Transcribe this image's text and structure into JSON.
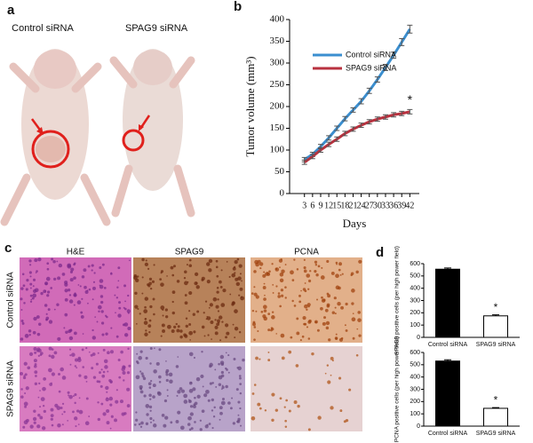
{
  "panel_labels": [
    "a",
    "b",
    "c",
    "d"
  ],
  "photo_panel": {
    "labels": [
      "Control siRNA",
      "SPAG9 siRNA"
    ]
  },
  "histology": {
    "columns": [
      "H&E",
      "SPAG9",
      "PCNA"
    ],
    "rows": [
      "Control siRNA",
      "SPAG9 siRNA"
    ]
  },
  "chart_data": [
    {
      "type": "line",
      "x_label": "Days",
      "y_label": "Tumor volume (mm³)",
      "x": [
        3,
        6,
        9,
        12,
        15,
        18,
        21,
        24,
        27,
        30,
        33,
        36,
        39,
        42
      ],
      "xlim": [
        -2.5,
        45.5
      ],
      "xticks": [
        3,
        6,
        9,
        12,
        15,
        18,
        21,
        24,
        27,
        30,
        33,
        36,
        39,
        42
      ],
      "ylim": [
        0,
        400
      ],
      "yticks": [
        0,
        50,
        100,
        150,
        200,
        250,
        300,
        350,
        400
      ],
      "series": [
        {
          "name": "Control siRNA",
          "color": "#3b8fd0",
          "values": [
            78,
            90,
            108,
            128,
            150,
            172,
            192,
            212,
            236,
            262,
            290,
            318,
            348,
            378
          ],
          "errors": [
            5,
            5,
            5,
            5,
            5,
            5,
            5,
            6,
            6,
            6,
            7,
            7,
            8,
            9
          ]
        },
        {
          "name": "SPAG9 siRNA",
          "color": "#b8323f",
          "values": [
            72,
            85,
            100,
            113,
            125,
            138,
            148,
            157,
            165,
            171,
            176,
            181,
            184,
            188
          ],
          "errors": [
            5,
            5,
            5,
            5,
            5,
            5,
            5,
            5,
            5,
            5,
            5,
            5,
            5,
            5
          ]
        }
      ],
      "annotation": "*"
    },
    {
      "type": "bar",
      "y_label": "SPAG9 positive cells (per high power field)",
      "categories": [
        "Control siRNA",
        "SPAG9 siRNA"
      ],
      "values": [
        555,
        175
      ],
      "errors": [
        10,
        8
      ],
      "colors": [
        "#000000",
        "#ffffff"
      ],
      "ylim": [
        0,
        600
      ],
      "yticks": [
        0,
        100,
        200,
        300,
        400,
        500,
        600
      ],
      "annotation": "*"
    },
    {
      "type": "bar",
      "y_label": "PCNA positive cells (per high power field)",
      "categories": [
        "Control siRNA",
        "SPAG9 siRNA"
      ],
      "values": [
        530,
        145
      ],
      "errors": [
        10,
        6
      ],
      "colors": [
        "#000000",
        "#ffffff"
      ],
      "ylim": [
        0,
        600
      ],
      "yticks": [
        0,
        100,
        200,
        300,
        400,
        500,
        600
      ],
      "annotation": "*"
    }
  ]
}
